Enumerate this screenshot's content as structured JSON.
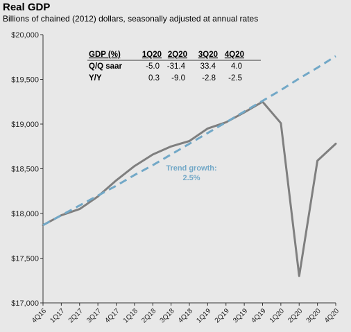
{
  "chart_data": {
    "type": "line",
    "title": "Real GDP",
    "subtitle": "Billions of chained (2012) dollars, seasonally adjusted at annual rates",
    "categories": [
      "4Q16",
      "1Q17",
      "2Q17",
      "3Q17",
      "4Q17",
      "1Q18",
      "2Q18",
      "3Q18",
      "4Q18",
      "1Q19",
      "2Q19",
      "3Q19",
      "4Q19",
      "1Q20",
      "2Q20",
      "3Q20",
      "4Q20"
    ],
    "ylim": [
      17000,
      20000
    ],
    "yticks": [
      17000,
      17500,
      18000,
      18500,
      19000,
      19500,
      20000
    ],
    "ytick_labels": [
      "$17,000",
      "$17,500",
      "$18,000",
      "$18,500",
      "$19,000",
      "$19,500",
      "$20,000"
    ],
    "grid": false,
    "series": [
      {
        "values": [
          17870,
          17980,
          18050,
          18190,
          18370,
          18530,
          18660,
          18750,
          18810,
          18950,
          19020,
          19130,
          19250,
          19010,
          17300,
          18590,
          18780
        ],
        "color": "#7f7f7f",
        "style": "solid"
      },
      {
        "values": [
          17870,
          17980,
          18090,
          18200,
          18310,
          18430,
          18540,
          18660,
          18780,
          18900,
          19020,
          19140,
          19260,
          19380,
          19510,
          19630,
          19760
        ],
        "color": "#72a8c7",
        "style": "dashed"
      }
    ],
    "annotations": [
      {
        "text_line1": "Trend growth:",
        "text_line2": "2.5%",
        "color": "#72a8c7"
      }
    ],
    "table": {
      "corner": "GDP (%)",
      "columns": [
        "1Q20",
        "2Q20",
        "3Q20",
        "4Q20"
      ],
      "rows": [
        {
          "label": "Q/Q saar",
          "values": [
            "-5.0",
            "-31.4",
            "33.4",
            "4.0"
          ]
        },
        {
          "label": "Y/Y",
          "values": [
            "0.3",
            "-9.0",
            "-2.8",
            "-2.5"
          ]
        }
      ]
    }
  }
}
